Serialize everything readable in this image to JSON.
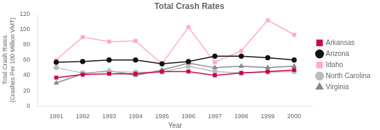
{
  "chart_data": {
    "type": "line",
    "title": "Total Crash Rates",
    "xlabel": "Year",
    "ylabel": "Total Crash Rates\n(Crashes Per 100 Million VMT)",
    "x": [
      1991,
      1992,
      1993,
      1994,
      1995,
      1996,
      1997,
      1998,
      1999,
      2000
    ],
    "series": [
      {
        "name": "Arkansas",
        "color": "#cc0055",
        "marker": "square",
        "values": [
          37,
          41,
          42,
          42,
          45,
          45,
          40,
          43,
          45,
          47
        ]
      },
      {
        "name": "Arizona",
        "color": "#111111",
        "marker": "circle",
        "values": [
          57,
          58,
          60,
          60,
          55,
          58,
          65,
          65,
          63,
          60
        ]
      },
      {
        "name": "Idaho",
        "color": "#ffaacc",
        "marker": "square",
        "values": [
          60,
          90,
          84,
          85,
          55,
          103,
          57,
          72,
          112,
          93
        ]
      },
      {
        "name": "North Carolina",
        "color": "#bbbbbb",
        "marker": "circle",
        "values": [
          50,
          43,
          45,
          44,
          44,
          52,
          45,
          43,
          44,
          45
        ]
      },
      {
        "name": "Virginia",
        "color": "#888888",
        "marker": "triangle",
        "values": [
          30,
          42,
          46,
          40,
          47,
          56,
          50,
          52,
          50,
          52
        ]
      }
    ],
    "xlim": [
      1990.3,
      2000.7
    ],
    "xticks": [
      1991,
      1992,
      1993,
      1994,
      1995,
      1996,
      1997,
      1998,
      1999,
      2000
    ],
    "ylim": [
      0,
      120
    ],
    "yticks": [
      0,
      20,
      40,
      60,
      80,
      100,
      120
    ],
    "grid": false,
    "legend": "right"
  }
}
